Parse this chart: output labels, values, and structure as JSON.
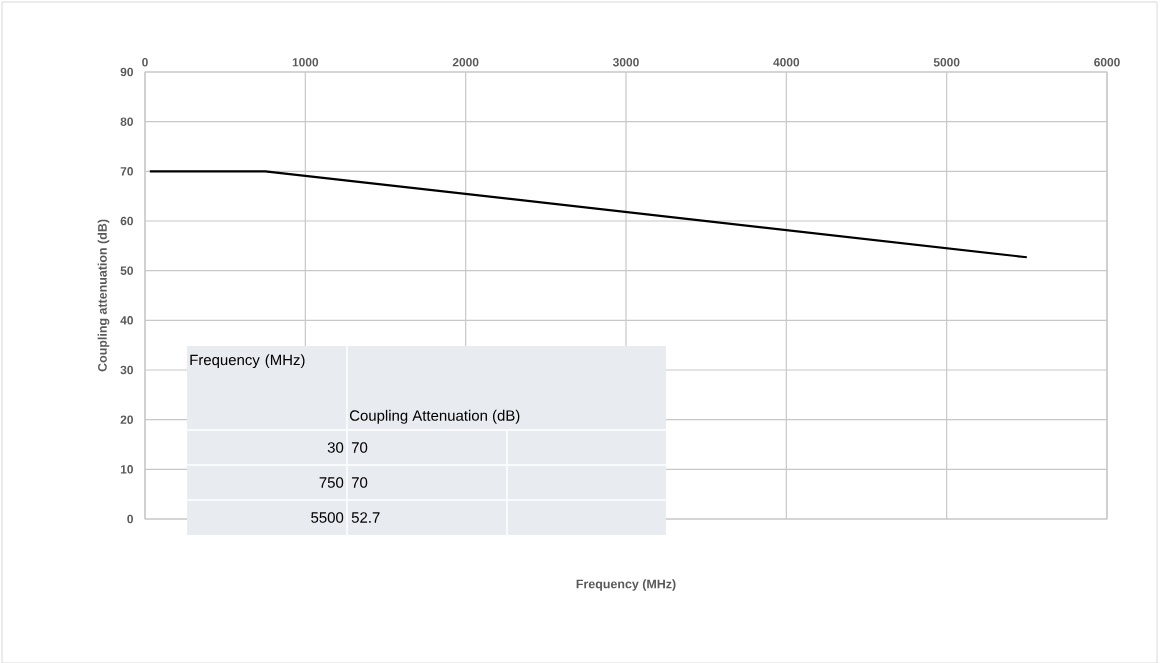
{
  "chart_data": {
    "type": "line",
    "xlabel": "Frequency (MHz)",
    "ylabel": "Coupling attenuation (dB)",
    "x": [
      30,
      750,
      5500
    ],
    "values": [
      70,
      70,
      52.7
    ],
    "color": "#000000",
    "xlim": [
      0,
      6000
    ],
    "ylim": [
      0,
      90
    ],
    "xticks": [
      0,
      1000,
      2000,
      3000,
      4000,
      5000,
      6000
    ],
    "yticks": [
      0,
      10,
      20,
      30,
      40,
      50,
      60,
      70,
      80,
      90
    ],
    "grid": true,
    "annotations": [
      "Frequency (MHz)",
      "Coupling Attenuation (dB)",
      "30",
      "70",
      "750",
      "70",
      "5500",
      "52.7"
    ]
  }
}
